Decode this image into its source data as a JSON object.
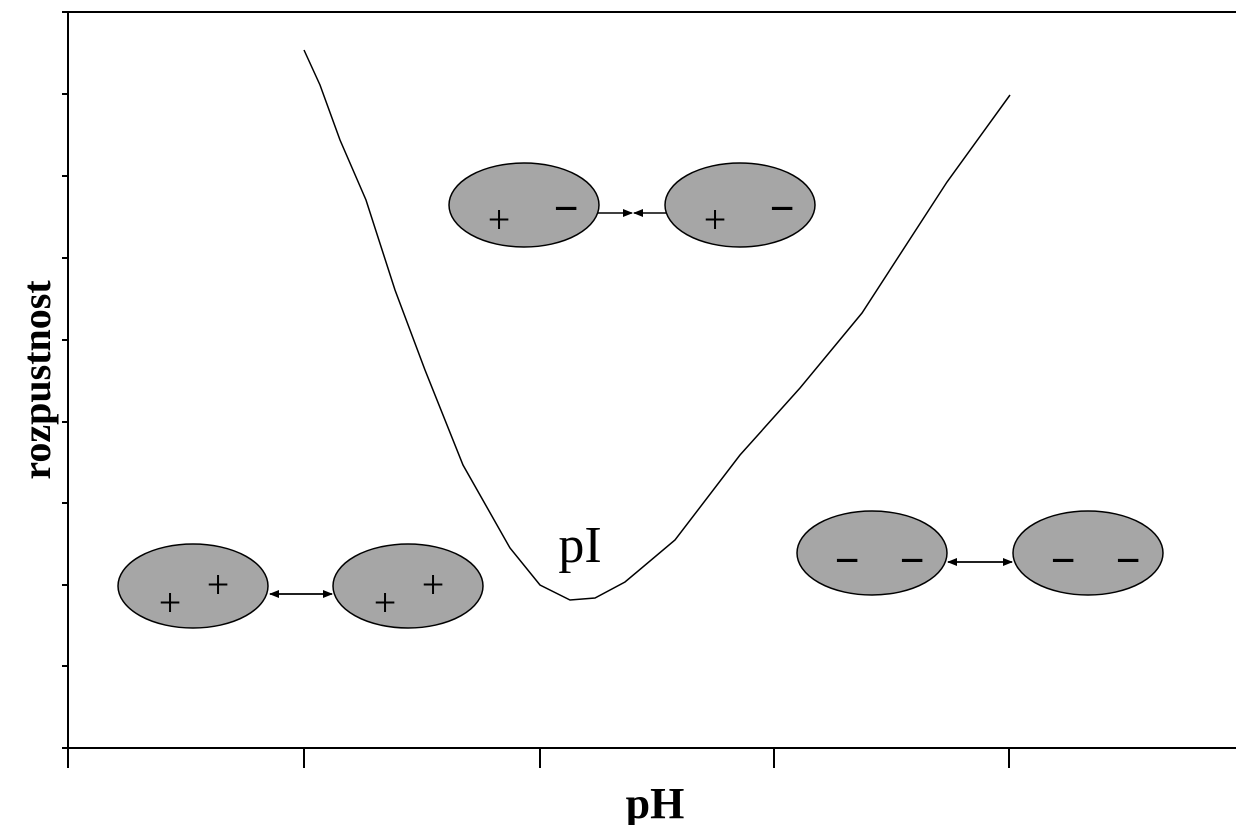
{
  "axes": {
    "x_label": "pH",
    "y_label": "rozpustnost"
  },
  "annotation": "pI",
  "particle_pairs": [
    {
      "left": [
        "+",
        "+"
      ],
      "right": [
        "+",
        "+"
      ]
    },
    {
      "left": [
        "+",
        "−"
      ],
      "right": [
        "+",
        "−"
      ]
    },
    {
      "left": [
        "−",
        "−"
      ],
      "right": [
        "−",
        "−"
      ]
    }
  ]
}
